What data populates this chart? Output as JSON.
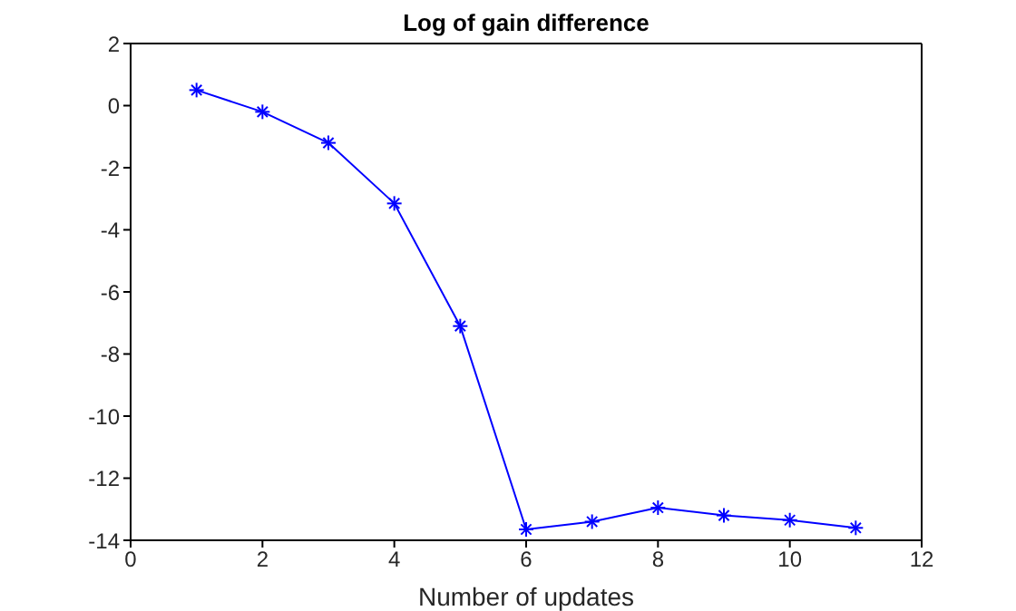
{
  "chart_data": {
    "type": "line",
    "title": "Log of gain difference",
    "xlabel": "Number of updates",
    "x": [
      1,
      2,
      3,
      4,
      5,
      6,
      7,
      8,
      9,
      10,
      11
    ],
    "series": [
      {
        "color": "#0000ff",
        "values": [
          0.5,
          -0.2,
          -1.2,
          -3.15,
          -7.1,
          -13.65,
          -13.4,
          -12.95,
          -13.2,
          -13.35,
          -13.6
        ]
      }
    ],
    "xlim": [
      0,
      12
    ],
    "xticks": [
      0,
      2,
      4,
      6,
      8,
      10,
      12
    ],
    "ylim": [
      -14,
      2
    ],
    "yticks": [
      -14,
      -12,
      -10,
      -8,
      -6,
      -4,
      -2,
      0,
      2
    ],
    "marker": "cross",
    "line_style": "solid",
    "grid": false,
    "legend": false
  }
}
